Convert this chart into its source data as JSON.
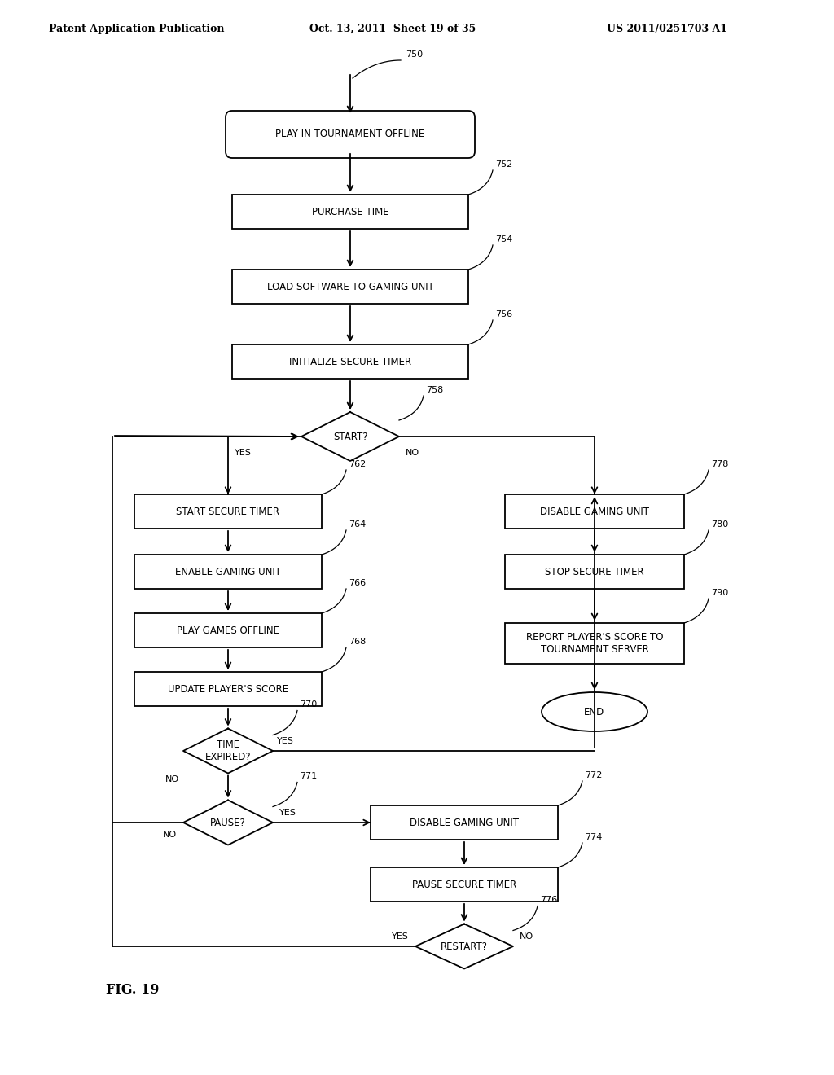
{
  "background": "#ffffff",
  "header_left": "Patent Application Publication",
  "header_mid": "Oct. 13, 2011  Sheet 19 of 35",
  "header_right": "US 2011/0251703 A1",
  "fig_label": "FIG. 19",
  "nodes": {
    "750": {
      "label": "PLAY IN TOURNAMENT OFFLINE",
      "type": "rounded_rect"
    },
    "752": {
      "label": "PURCHASE TIME",
      "type": "rect"
    },
    "754": {
      "label": "LOAD SOFTWARE TO GAMING UNIT",
      "type": "rect"
    },
    "756": {
      "label": "INITIALIZE SECURE TIMER",
      "type": "rect"
    },
    "758": {
      "label": "START?",
      "type": "diamond"
    },
    "762": {
      "label": "START SECURE TIMER",
      "type": "rect"
    },
    "764": {
      "label": "ENABLE GAMING UNIT",
      "type": "rect"
    },
    "766": {
      "label": "PLAY GAMES OFFLINE",
      "type": "rect"
    },
    "768": {
      "label": "UPDATE PLAYER'S SCORE",
      "type": "rect"
    },
    "770": {
      "label": "TIME\nEXPIRED?",
      "type": "diamond"
    },
    "771": {
      "label": "PAUSE?",
      "type": "diamond"
    },
    "772": {
      "label": "DISABLE GAMING UNIT",
      "type": "rect"
    },
    "774": {
      "label": "PAUSE SECURE TIMER",
      "type": "rect"
    },
    "776": {
      "label": "RESTART?",
      "type": "diamond"
    },
    "778": {
      "label": "DISABLE GAMING UNIT",
      "type": "rect"
    },
    "780": {
      "label": "STOP SECURE TIMER",
      "type": "rect"
    },
    "790": {
      "label": "REPORT PLAYER'S SCORE TO\nTOURNAMENT SERVER",
      "type": "rect"
    },
    "END": {
      "label": "END",
      "type": "oval"
    }
  }
}
